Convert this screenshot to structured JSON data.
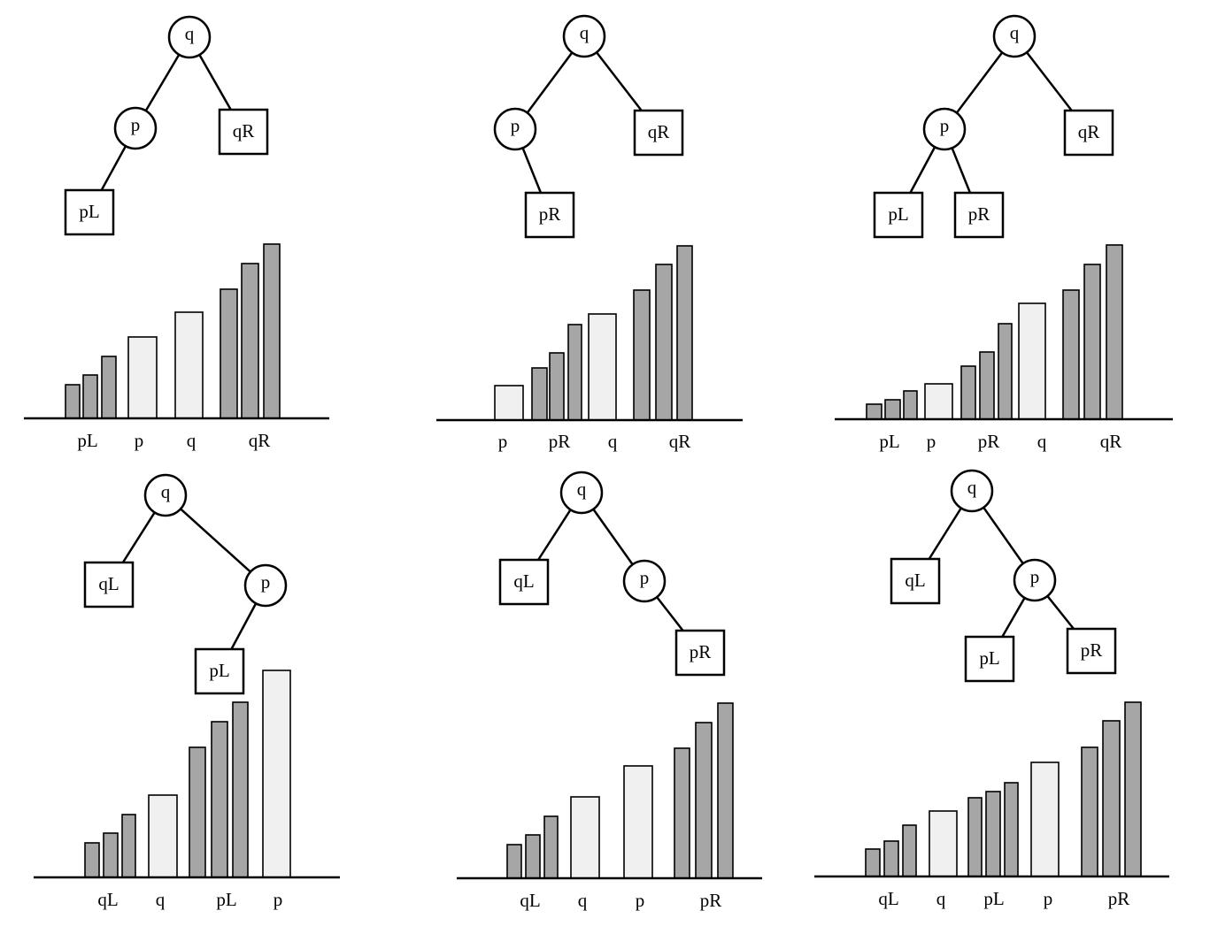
{
  "colors": {
    "stroke": "#000000",
    "bar_dark": "#a6a6a6",
    "bar_light": "#f0f0f0",
    "node_fill": "#ffffff"
  },
  "panels": [
    {
      "tree": {
        "root": "q",
        "nodes": [
          {
            "id": "q",
            "label": "q",
            "kind": "circle"
          },
          {
            "id": "p",
            "label": "p",
            "kind": "circle"
          },
          {
            "id": "qR",
            "label": "qR",
            "kind": "box"
          },
          {
            "id": "pL",
            "label": "pL",
            "kind": "box"
          }
        ],
        "edges": [
          [
            "q",
            "p"
          ],
          [
            "q",
            "qR"
          ],
          [
            "p",
            "pL"
          ]
        ]
      },
      "bars": [
        {
          "group": "pL",
          "shade": "dark",
          "value": 38
        },
        {
          "group": "pL",
          "shade": "dark",
          "value": 49
        },
        {
          "group": "pL",
          "shade": "dark",
          "value": 70
        },
        {
          "group": "p",
          "shade": "light",
          "value": 92
        },
        {
          "group": "q",
          "shade": "light",
          "value": 120
        },
        {
          "group": "qR",
          "shade": "dark",
          "value": 146
        },
        {
          "group": "qR",
          "shade": "dark",
          "value": 175
        },
        {
          "group": "qR",
          "shade": "dark",
          "value": 197
        }
      ],
      "axis_labels": [
        "pL",
        "p",
        "q",
        "qR"
      ]
    },
    {
      "tree": {
        "root": "q",
        "nodes": [
          {
            "id": "q",
            "label": "q",
            "kind": "circle"
          },
          {
            "id": "p",
            "label": "p",
            "kind": "circle"
          },
          {
            "id": "qR",
            "label": "qR",
            "kind": "box"
          },
          {
            "id": "pR",
            "label": "pR",
            "kind": "box"
          }
        ],
        "edges": [
          [
            "q",
            "p"
          ],
          [
            "q",
            "qR"
          ],
          [
            "p",
            "pR"
          ]
        ]
      },
      "bars": [
        {
          "group": "p",
          "shade": "light",
          "value": 39
        },
        {
          "group": "pR",
          "shade": "dark",
          "value": 59
        },
        {
          "group": "pR",
          "shade": "dark",
          "value": 76
        },
        {
          "group": "pR",
          "shade": "dark",
          "value": 108
        },
        {
          "group": "q",
          "shade": "light",
          "value": 120
        },
        {
          "group": "qR",
          "shade": "dark",
          "value": 147
        },
        {
          "group": "qR",
          "shade": "dark",
          "value": 176
        },
        {
          "group": "qR",
          "shade": "dark",
          "value": 197
        }
      ],
      "axis_labels": [
        "p",
        "pR",
        "q",
        "qR"
      ]
    },
    {
      "tree": {
        "root": "q",
        "nodes": [
          {
            "id": "q",
            "label": "q",
            "kind": "circle"
          },
          {
            "id": "p",
            "label": "p",
            "kind": "circle"
          },
          {
            "id": "qR",
            "label": "qR",
            "kind": "box"
          },
          {
            "id": "pL",
            "label": "pL",
            "kind": "box"
          },
          {
            "id": "pR",
            "label": "pR",
            "kind": "box"
          }
        ],
        "edges": [
          [
            "q",
            "p"
          ],
          [
            "q",
            "qR"
          ],
          [
            "p",
            "pL"
          ],
          [
            "p",
            "pR"
          ]
        ]
      },
      "bars": [
        {
          "group": "pL",
          "shade": "dark",
          "value": 17
        },
        {
          "group": "pL",
          "shade": "dark",
          "value": 22
        },
        {
          "group": "pL",
          "shade": "dark",
          "value": 32
        },
        {
          "group": "p",
          "shade": "light",
          "value": 40
        },
        {
          "group": "pR",
          "shade": "dark",
          "value": 60
        },
        {
          "group": "pR",
          "shade": "dark",
          "value": 76
        },
        {
          "group": "pR",
          "shade": "dark",
          "value": 108
        },
        {
          "group": "q",
          "shade": "light",
          "value": 131
        },
        {
          "group": "qR",
          "shade": "dark",
          "value": 146
        },
        {
          "group": "qR",
          "shade": "dark",
          "value": 175
        },
        {
          "group": "qR",
          "shade": "dark",
          "value": 197
        }
      ],
      "axis_labels": [
        "pL",
        "p",
        "pR",
        "q",
        "qR"
      ]
    },
    {
      "tree": {
        "root": "q",
        "nodes": [
          {
            "id": "q",
            "label": "q",
            "kind": "circle"
          },
          {
            "id": "qL",
            "label": "qL",
            "kind": "box"
          },
          {
            "id": "p",
            "label": "p",
            "kind": "circle"
          },
          {
            "id": "pL",
            "label": "pL",
            "kind": "box"
          }
        ],
        "edges": [
          [
            "q",
            "qL"
          ],
          [
            "q",
            "p"
          ],
          [
            "p",
            "pL"
          ]
        ]
      },
      "bars": [
        {
          "group": "qL",
          "shade": "dark",
          "value": 39
        },
        {
          "group": "qL",
          "shade": "dark",
          "value": 50
        },
        {
          "group": "qL",
          "shade": "dark",
          "value": 71
        },
        {
          "group": "q",
          "shade": "light",
          "value": 93
        },
        {
          "group": "pL",
          "shade": "dark",
          "value": 147
        },
        {
          "group": "pL",
          "shade": "dark",
          "value": 176
        },
        {
          "group": "pL",
          "shade": "dark",
          "value": 198
        },
        {
          "group": "p",
          "shade": "light",
          "value": 234
        }
      ],
      "axis_labels": [
        "qL",
        "q",
        "pL",
        "p"
      ]
    },
    {
      "tree": {
        "root": "q",
        "nodes": [
          {
            "id": "q",
            "label": "q",
            "kind": "circle"
          },
          {
            "id": "qL",
            "label": "qL",
            "kind": "box"
          },
          {
            "id": "p",
            "label": "p",
            "kind": "circle"
          },
          {
            "id": "pR",
            "label": "pR",
            "kind": "box"
          }
        ],
        "edges": [
          [
            "q",
            "qL"
          ],
          [
            "q",
            "p"
          ],
          [
            "p",
            "pR"
          ]
        ]
      },
      "bars": [
        {
          "group": "qL",
          "shade": "dark",
          "value": 38
        },
        {
          "group": "qL",
          "shade": "dark",
          "value": 49
        },
        {
          "group": "qL",
          "shade": "dark",
          "value": 70
        },
        {
          "group": "q",
          "shade": "light",
          "value": 92
        },
        {
          "group": "p",
          "shade": "light",
          "value": 127
        },
        {
          "group": "pR",
          "shade": "dark",
          "value": 147
        },
        {
          "group": "pR",
          "shade": "dark",
          "value": 176
        },
        {
          "group": "pR",
          "shade": "dark",
          "value": 198
        }
      ],
      "axis_labels": [
        "qL",
        "q",
        "p",
        "pR"
      ]
    },
    {
      "tree": {
        "root": "q",
        "nodes": [
          {
            "id": "q",
            "label": "q",
            "kind": "circle"
          },
          {
            "id": "qL",
            "label": "qL",
            "kind": "box"
          },
          {
            "id": "p",
            "label": "p",
            "kind": "circle"
          },
          {
            "id": "pL",
            "label": "pL",
            "kind": "box"
          },
          {
            "id": "pR",
            "label": "pR",
            "kind": "box"
          }
        ],
        "edges": [
          [
            "q",
            "qL"
          ],
          [
            "q",
            "p"
          ],
          [
            "p",
            "pL"
          ],
          [
            "p",
            "pR"
          ]
        ]
      },
      "bars": [
        {
          "group": "qL",
          "shade": "dark",
          "value": 31
        },
        {
          "group": "qL",
          "shade": "dark",
          "value": 40
        },
        {
          "group": "qL",
          "shade": "dark",
          "value": 58
        },
        {
          "group": "q",
          "shade": "light",
          "value": 74
        },
        {
          "group": "pL",
          "shade": "dark",
          "value": 89
        },
        {
          "group": "pL",
          "shade": "dark",
          "value": 96
        },
        {
          "group": "pL",
          "shade": "dark",
          "value": 106
        },
        {
          "group": "p",
          "shade": "light",
          "value": 129
        },
        {
          "group": "pR",
          "shade": "dark",
          "value": 146
        },
        {
          "group": "pR",
          "shade": "dark",
          "value": 176
        },
        {
          "group": "pR",
          "shade": "dark",
          "value": 197
        }
      ],
      "axis_labels": [
        "qL",
        "q",
        "pL",
        "p",
        "pR"
      ]
    }
  ]
}
